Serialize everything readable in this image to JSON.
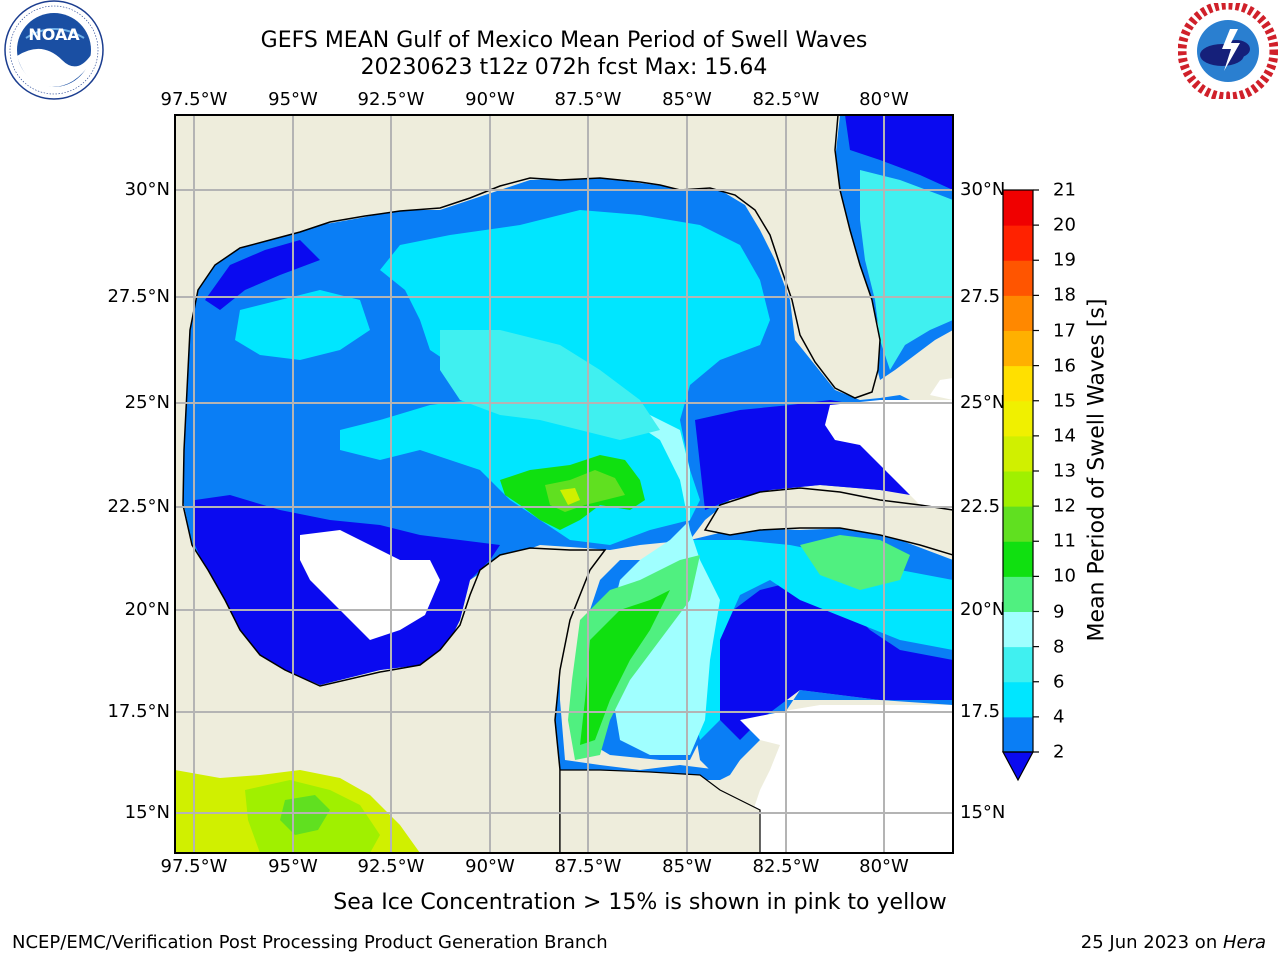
{
  "title": {
    "line1": "GEFS MEAN Gulf of Mexico Mean Period of Swell Waves",
    "line2": "20230623 t12z 072h fcst   Max: 15.64"
  },
  "logos": {
    "noaa": "NOAA",
    "noaa_ring": "NATIONAL OCEANIC AND ATMOSPHERIC ADMINISTRATION · U.S. DEPARTMENT OF COMMERCE",
    "nws_ring": "NATIONAL WEATHER SERVICE"
  },
  "map": {
    "lon_labels": [
      "97.5°W",
      "95°W",
      "92.5°W",
      "90°W",
      "87.5°W",
      "85°W",
      "82.5°W",
      "80°W"
    ],
    "lat_labels_left": [
      "30°N",
      "27.5°N",
      "25°N",
      "22.5°N",
      "20°N",
      "17.5°N",
      "15°N"
    ],
    "lat_labels_right": [
      "30°N",
      "27.5",
      "25°N",
      "22.5",
      "20°N",
      "17.5",
      "15°N"
    ],
    "colors": {
      "land": "#eeeddc",
      "grid": "#b4b4b4",
      "coast": "#000000"
    }
  },
  "colorbar": {
    "label": "Mean Period of Swell Waves [s]",
    "ticks": [
      "2",
      "4",
      "6",
      "8",
      "9",
      "10",
      "11",
      "12",
      "13",
      "14",
      "15",
      "16",
      "17",
      "18",
      "19",
      "20",
      "21"
    ],
    "colors": [
      "#0a0af0",
      "#0a7ef5",
      "#00e6ff",
      "#40f0f0",
      "#a0ffff",
      "#50f080",
      "#10e010",
      "#60e020",
      "#a0f000",
      "#d0f000",
      "#f0f000",
      "#ffe000",
      "#ffb000",
      "#ff8800",
      "#ff5500",
      "#ff2200",
      "#f00000"
    ]
  },
  "caption": "Sea Ice Concentration > 15% is shown in pink to yellow",
  "footer": {
    "left": "NCEP/EMC/Verification Post Processing Product Generation Branch",
    "date": "25 Jun 2023 on ",
    "host": "Hera"
  }
}
